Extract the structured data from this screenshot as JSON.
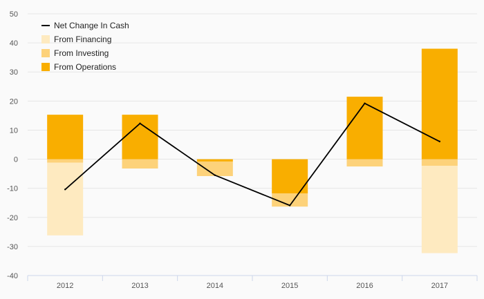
{
  "chart_data": {
    "type": "bar",
    "categories": [
      "2012",
      "2013",
      "2014",
      "2015",
      "2016",
      "2017"
    ],
    "series": [
      {
        "name": "From Operations",
        "kind": "bar",
        "color": "#f9ae00",
        "values": [
          15.3,
          15.3,
          -0.8,
          -11.8,
          21.5,
          38.0
        ]
      },
      {
        "name": "From Investing",
        "kind": "bar",
        "color": "#fdd27a",
        "values": [
          -1.2,
          -3.2,
          -5.0,
          -4.5,
          -2.5,
          -2.3
        ]
      },
      {
        "name": "From Financing",
        "kind": "bar",
        "color": "#feeac0",
        "values": [
          -25.0,
          0,
          0,
          0,
          0,
          -30.0
        ]
      },
      {
        "name": "Net Change In Cash",
        "kind": "line",
        "color": "#000000",
        "values": [
          -10.4,
          12.3,
          -5.5,
          -15.9,
          19.2,
          6.1
        ]
      }
    ],
    "legend_order": [
      "Net Change In Cash",
      "From Financing",
      "From Investing",
      "From Operations"
    ],
    "y_ticks": [
      50,
      40,
      30,
      20,
      10,
      0,
      -10,
      -20,
      -30,
      -40
    ],
    "ylim": [
      -40,
      50
    ],
    "grid": true,
    "legend_position": "top-left",
    "title": "",
    "xlabel": "",
    "ylabel": ""
  }
}
